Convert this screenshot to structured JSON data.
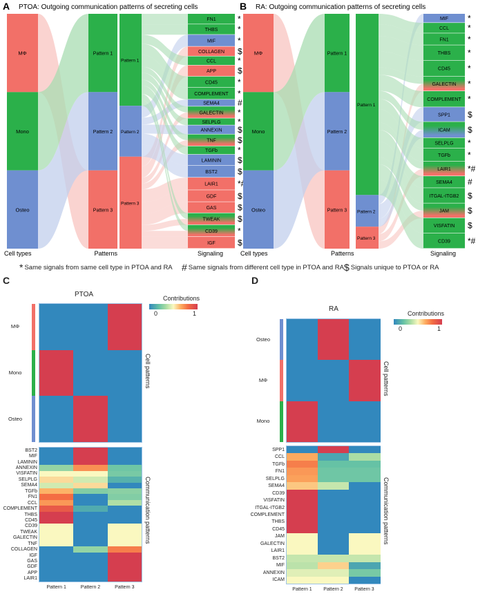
{
  "colors": {
    "pattern1": "#2bb04a",
    "pattern2": "#6f8fd0",
    "pattern3": "#f27068"
  },
  "panelA": {
    "letter": "A",
    "title": "PTOA: Outgoing communication patterns of secreting cells",
    "axis_labels": {
      "cells": "Cell types",
      "patterns": "Patterns",
      "signaling": "Signaling"
    },
    "cell_types": [
      {
        "name": "MΦ",
        "pattern": 3
      },
      {
        "name": "Mono",
        "pattern": 1
      },
      {
        "name": "Osteo",
        "pattern": 2
      }
    ],
    "patterns": [
      "Pattern 1",
      "Pattern 2",
      "Pattern 3"
    ],
    "signals": [
      {
        "name": "FN1",
        "patterns": [
          1
        ],
        "weight": 15,
        "mark": "*"
      },
      {
        "name": "THBS",
        "patterns": [
          1
        ],
        "weight": 15,
        "mark": "*"
      },
      {
        "name": "MIF",
        "patterns": [
          2
        ],
        "weight": 17,
        "mark": "*"
      },
      {
        "name": "COLLAGEN",
        "patterns": [
          3
        ],
        "weight": 14,
        "mark": "$"
      },
      {
        "name": "CCL",
        "patterns": [
          1
        ],
        "weight": 13,
        "mark": "*"
      },
      {
        "name": "APP",
        "patterns": [
          3
        ],
        "weight": 16,
        "mark": "$"
      },
      {
        "name": "CD45",
        "patterns": [
          1
        ],
        "weight": 16,
        "mark": "*"
      },
      {
        "name": "COMPLEMENT",
        "patterns": [
          1
        ],
        "weight": 17,
        "mark": "*"
      },
      {
        "name": "SEMA4",
        "patterns": [
          2
        ],
        "weight": 10,
        "mark": "#"
      },
      {
        "name": "GALECTIN",
        "patterns": [
          1,
          3
        ],
        "weight": 17,
        "mark": "*"
      },
      {
        "name": "SELPLG",
        "patterns": [
          1
        ],
        "weight": 10,
        "mark": "*"
      },
      {
        "name": "ANNEXIN",
        "patterns": [
          2
        ],
        "weight": 13,
        "mark": "$"
      },
      {
        "name": "TNF",
        "patterns": [
          1,
          3
        ],
        "weight": 17,
        "mark": "$"
      },
      {
        "name": "TGFb",
        "patterns": [
          1
        ],
        "weight": 12,
        "mark": "*"
      },
      {
        "name": "LAMININ",
        "patterns": [
          2
        ],
        "weight": 16,
        "mark": "$"
      },
      {
        "name": "BST2",
        "patterns": [
          2
        ],
        "weight": 17,
        "mark": "$"
      },
      {
        "name": "LAIR1",
        "patterns": [
          3
        ],
        "weight": 18,
        "mark": "*#"
      },
      {
        "name": "GDF",
        "patterns": [
          3
        ],
        "weight": 17,
        "mark": "$"
      },
      {
        "name": "GAS",
        "patterns": [
          3
        ],
        "weight": 16,
        "mark": "$"
      },
      {
        "name": "TWEAK",
        "patterns": [
          1,
          3
        ],
        "weight": 17,
        "mark": "$"
      },
      {
        "name": "CD39",
        "patterns": [
          1,
          3
        ],
        "weight": 17,
        "mark": "*"
      },
      {
        "name": "IGF",
        "patterns": [
          3
        ],
        "weight": 17,
        "mark": "$"
      }
    ]
  },
  "panelB": {
    "letter": "B",
    "title": "RA: Outgoing communication patterns of secreting cells",
    "axis_labels": {
      "cells": "Cell types",
      "patterns": "Patterns",
      "signaling": "Signaling"
    },
    "cell_types": [
      {
        "name": "MΦ",
        "pattern": 3
      },
      {
        "name": "Mono",
        "pattern": 1
      },
      {
        "name": "Osteo",
        "pattern": 2
      }
    ],
    "patterns": [
      "Pattern 1",
      "Pattern 2",
      "Pattern 3"
    ],
    "signals": [
      {
        "name": "MIF",
        "patterns": [
          2
        ],
        "weight": 13,
        "mark": "*"
      },
      {
        "name": "CCL",
        "patterns": [
          1
        ],
        "weight": 15,
        "mark": "*"
      },
      {
        "name": "FN1",
        "patterns": [
          1
        ],
        "weight": 17,
        "mark": "*"
      },
      {
        "name": "THBS",
        "patterns": [
          1
        ],
        "weight": 22,
        "mark": "*"
      },
      {
        "name": "CD45",
        "patterns": [
          1
        ],
        "weight": 23,
        "mark": "*"
      },
      {
        "name": "GALECTIN",
        "patterns": [
          1,
          3
        ],
        "weight": 21,
        "mark": "*"
      },
      {
        "name": "COMPLEMENT",
        "patterns": [
          1
        ],
        "weight": 23,
        "mark": "*"
      },
      {
        "name": "SPP1",
        "patterns": [
          2
        ],
        "weight": 21,
        "mark": "$"
      },
      {
        "name": "ICAM",
        "patterns": [
          1,
          2
        ],
        "weight": 23,
        "mark": "$"
      },
      {
        "name": "SELPLG",
        "patterns": [
          1
        ],
        "weight": 15,
        "mark": "*"
      },
      {
        "name": "TGFb",
        "patterns": [
          1
        ],
        "weight": 19,
        "mark": "*"
      },
      {
        "name": "LAIR1",
        "patterns": [
          1,
          3
        ],
        "weight": 21,
        "mark": "*#"
      },
      {
        "name": "SEMA4",
        "patterns": [
          1
        ],
        "weight": 17,
        "mark": "#"
      },
      {
        "name": "ITGAL-ITGB2",
        "patterns": [
          1
        ],
        "weight": 22,
        "mark": "$"
      },
      {
        "name": "JAM",
        "patterns": [
          1,
          3
        ],
        "weight": 21,
        "mark": "$"
      },
      {
        "name": "VISFATIN",
        "patterns": [
          1
        ],
        "weight": 22,
        "mark": "$"
      },
      {
        "name": "CD39",
        "patterns": [
          1
        ],
        "weight": 22,
        "mark": "*#"
      }
    ]
  },
  "legend": [
    {
      "symbol": "*",
      "text": "Same signals from same cell type in PTOA and RA"
    },
    {
      "symbol": "#",
      "text": "Same signals from different cell type in PTOA and RA"
    },
    {
      "symbol": "$",
      "text": "Signals unique to PTOA or RA"
    }
  ],
  "heatmapC": {
    "letter": "C",
    "title": "PTOA",
    "colorbar": {
      "title": "Contributions",
      "min": "0",
      "max": "1"
    },
    "columns": [
      "Pattern 1",
      "Pattern 2",
      "Pattern 3"
    ],
    "side_labels": {
      "cell": "Cell patterns",
      "comm": "Communication patterns"
    },
    "cell_rows": [
      {
        "name": "MΦ",
        "color": "#f27068",
        "values": [
          0,
          0,
          1
        ]
      },
      {
        "name": "Mono",
        "color": "#2bb04a",
        "values": [
          1,
          0,
          0
        ]
      },
      {
        "name": "Osteo",
        "color": "#6f8fd0",
        "values": [
          0,
          1,
          0
        ]
      }
    ],
    "comm_rows": [
      {
        "name": "BST2",
        "values": [
          0,
          1,
          0
        ]
      },
      {
        "name": "MIF",
        "values": [
          0,
          1,
          0
        ]
      },
      {
        "name": "LAMININ",
        "values": [
          0,
          1,
          0
        ]
      },
      {
        "name": "ANNEXIN",
        "values": [
          0.3,
          0.72,
          0.22
        ]
      },
      {
        "name": "VISFATIN",
        "values": [
          0.5,
          0.5,
          0.24
        ]
      },
      {
        "name": "SELPLG",
        "values": [
          0.56,
          0.42,
          0.14
        ]
      },
      {
        "name": "SEMA4",
        "values": [
          0.42,
          0.56,
          0
        ]
      },
      {
        "name": "TGFb",
        "values": [
          0.64,
          0.26,
          0.28
        ]
      },
      {
        "name": "FN1",
        "values": [
          0.8,
          0,
          0.26
        ]
      },
      {
        "name": "CCL",
        "values": [
          0.7,
          0,
          0.36
        ]
      },
      {
        "name": "COMPLEMENT",
        "values": [
          0.88,
          0.12,
          0
        ]
      },
      {
        "name": "THBS",
        "values": [
          1,
          0,
          0
        ]
      },
      {
        "name": "CD45",
        "values": [
          1,
          0,
          0
        ]
      },
      {
        "name": "CD39",
        "values": [
          0.5,
          0,
          0.5
        ]
      },
      {
        "name": "TWEAK",
        "values": [
          0.5,
          0,
          0.5
        ]
      },
      {
        "name": "GALECTIN",
        "values": [
          0.5,
          0,
          0.5
        ]
      },
      {
        "name": "TNF",
        "values": [
          0.5,
          0,
          0.5
        ]
      },
      {
        "name": "COLLAGEN",
        "values": [
          0,
          0.3,
          0.76
        ]
      },
      {
        "name": "IGF",
        "values": [
          0,
          0,
          1
        ]
      },
      {
        "name": "GAS",
        "values": [
          0,
          0,
          1
        ]
      },
      {
        "name": "GDF",
        "values": [
          0,
          0,
          1
        ]
      },
      {
        "name": "APP",
        "values": [
          0,
          0,
          1
        ]
      },
      {
        "name": "LAIR1",
        "values": [
          0,
          0,
          1
        ]
      }
    ]
  },
  "heatmapD": {
    "letter": "D",
    "title": "RA",
    "colorbar": {
      "title": "Contributions",
      "min": "0",
      "max": "1"
    },
    "columns": [
      "Pattern 1",
      "Pattern 2",
      "Pattern 3"
    ],
    "side_labels": {
      "cell": "Cell patterns",
      "comm": "Communication patterns"
    },
    "cell_rows": [
      {
        "name": "Osteo",
        "color": "#6f8fd0",
        "values": [
          0,
          1,
          0
        ]
      },
      {
        "name": "MΦ",
        "color": "#f27068",
        "values": [
          0,
          0,
          1
        ]
      },
      {
        "name": "Mono",
        "color": "#2bb04a",
        "values": [
          1,
          0,
          0
        ]
      }
    ],
    "comm_rows": [
      {
        "name": "SPP1",
        "values": [
          0,
          1,
          0
        ]
      },
      {
        "name": "CCL",
        "values": [
          0.66,
          0.1,
          0.35
        ]
      },
      {
        "name": "TGFb",
        "values": [
          0.76,
          0.2,
          0.2
        ]
      },
      {
        "name": "FN1",
        "values": [
          0.7,
          0.22,
          0.22
        ]
      },
      {
        "name": "SELPLG",
        "values": [
          0.68,
          0.22,
          0.22
        ]
      },
      {
        "name": "SEMA4",
        "values": [
          0.6,
          0.4,
          0
        ]
      },
      {
        "name": "CD39",
        "values": [
          1,
          0,
          0
        ]
      },
      {
        "name": "VISFATIN",
        "values": [
          1,
          0,
          0
        ]
      },
      {
        "name": "ITGAL-ITGB2",
        "values": [
          1,
          0,
          0
        ]
      },
      {
        "name": "COMPLEMENT",
        "values": [
          1,
          0,
          0
        ]
      },
      {
        "name": "THBS",
        "values": [
          1,
          0,
          0
        ]
      },
      {
        "name": "CD45",
        "values": [
          1,
          0,
          0
        ]
      },
      {
        "name": "JAM",
        "values": [
          0.5,
          0,
          0.5
        ]
      },
      {
        "name": "GALECTIN",
        "values": [
          0.5,
          0,
          0.5
        ]
      },
      {
        "name": "LAIR1",
        "values": [
          0.5,
          0,
          0.5
        ]
      },
      {
        "name": "BST2",
        "values": [
          0.4,
          0.4,
          0.4
        ]
      },
      {
        "name": "MIF",
        "values": [
          0.38,
          0.58,
          0.1
        ]
      },
      {
        "name": "ANNEXIN",
        "values": [
          0.45,
          0.45,
          0.24
        ]
      },
      {
        "name": "ICAM",
        "values": [
          0.5,
          0.5,
          0
        ]
      }
    ]
  }
}
